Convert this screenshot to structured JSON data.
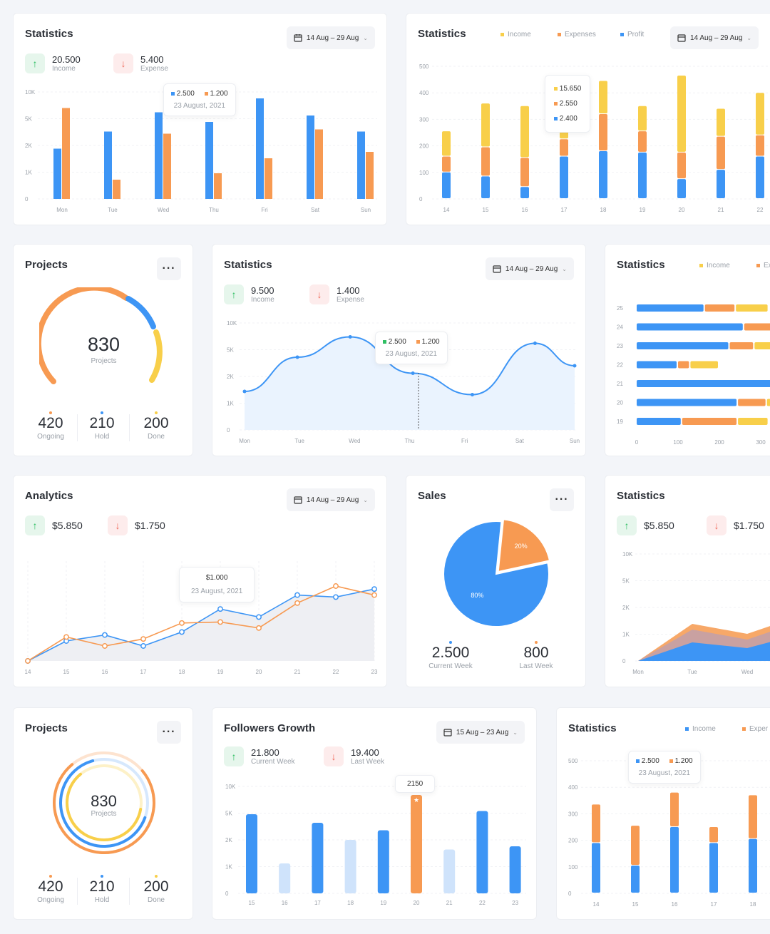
{
  "colors": {
    "blue": "#3d95f5",
    "orange": "#f79a52",
    "yellow": "#f8cf4a",
    "green": "#2fbf63",
    "red": "#f06a5b",
    "lightblue": "#cfe3fb"
  },
  "icons": {
    "calendar": "calendar-icon",
    "up": "arrow-up-icon",
    "down": "arrow-down-icon",
    "chevron": "chevron-down-icon",
    "more": "more-icon"
  },
  "c1": {
    "title": "Statistics",
    "date": "14 Aug – 29 Aug",
    "kpi1": {
      "value": "20.500",
      "label": "Income"
    },
    "kpi2": {
      "value": "5.400",
      "label": "Expense"
    },
    "tip": {
      "a": "2.500",
      "b": "1.200",
      "date": "23 August, 2021"
    },
    "chart_data": {
      "type": "bar",
      "categories": [
        "Mon",
        "Tue",
        "Wed",
        "Thu",
        "Fri",
        "Sat",
        "Sun"
      ],
      "yticks": [
        "10K",
        "5K",
        "2K",
        "1K",
        "0"
      ],
      "series": [
        {
          "color": "blue",
          "values": [
            0.47,
            0.63,
            0.81,
            0.72,
            0.94,
            0.78,
            0.63
          ]
        },
        {
          "color": "orange",
          "values": [
            0.85,
            0.18,
            0.61,
            0.24,
            0.38,
            0.65,
            0.44
          ]
        }
      ]
    }
  },
  "c2": {
    "title": "Statistics",
    "date": "14 Aug – 29 Aug",
    "legend": [
      "Income",
      "Expenses",
      "Profit"
    ],
    "tip": {
      "a": "15.650",
      "b": "2.550",
      "c": "2.400"
    },
    "chart_data": {
      "type": "bar",
      "categories": [
        "14",
        "15",
        "16",
        "17",
        "18",
        "19",
        "20",
        "21",
        "22"
      ],
      "yticks": [
        "500",
        "400",
        "300",
        "200",
        "100",
        "0"
      ],
      "ylim": [
        0,
        500
      ],
      "series": [
        {
          "name": "Income",
          "color": "blue",
          "values": [
            100,
            85,
            45,
            160,
            180,
            175,
            75,
            110,
            160
          ]
        },
        {
          "name": "Expenses",
          "color": "orange",
          "values": [
            60,
            110,
            110,
            65,
            140,
            80,
            100,
            125,
            80
          ]
        },
        {
          "name": "Profit",
          "color": "yellow",
          "values": [
            95,
            165,
            195,
            190,
            125,
            95,
            290,
            105,
            160
          ]
        }
      ]
    }
  },
  "c3": {
    "title": "Projects",
    "value": "830",
    "label": "Projects",
    "stats": [
      {
        "v": "420",
        "l": "Ongoing"
      },
      {
        "v": "210",
        "l": "Hold"
      },
      {
        "v": "200",
        "l": "Done"
      }
    ]
  },
  "c4": {
    "title": "Statistics",
    "date": "14 Aug – 29 Aug",
    "kpi1": {
      "value": "9.500",
      "label": "Income"
    },
    "kpi2": {
      "value": "1.400",
      "label": "Expense"
    },
    "tip": {
      "a": "2.500",
      "b": "1.200",
      "date": "23 August, 2021"
    },
    "chart_data": {
      "type": "area",
      "categories": [
        "Mon",
        "Tue",
        "Wed",
        "Thu",
        "Fri",
        "Sat",
        "Sun"
      ],
      "yticks": [
        "10K",
        "5K",
        "2K",
        "1K",
        "0"
      ],
      "points": [
        [
          0,
          0.36
        ],
        [
          0.16,
          0.68
        ],
        [
          0.32,
          0.87
        ],
        [
          0.51,
          0.53
        ],
        [
          0.69,
          0.33
        ],
        [
          0.88,
          0.81
        ],
        [
          1,
          0.6
        ]
      ]
    }
  },
  "c5": {
    "title": "Statistics",
    "legend": [
      "Income",
      "Expenses"
    ],
    "chart_data": {
      "type": "bar",
      "orientation": "horizontal",
      "categories": [
        "25",
        "24",
        "23",
        "22",
        "21",
        "20",
        "19"
      ],
      "xticks": [
        "0",
        "100",
        "200",
        "300"
      ],
      "series": [
        {
          "color": "blue",
          "values": [
            165,
            260,
            225,
            100,
            330,
            245,
            110
          ]
        },
        {
          "color": "orange",
          "values": [
            75,
            75,
            60,
            30,
            0,
            70,
            135
          ]
        },
        {
          "color": "yellow",
          "values": [
            80,
            60,
            70,
            70,
            0,
            60,
            75
          ]
        }
      ]
    }
  },
  "c6": {
    "title": "Analytics",
    "date": "14 Aug – 29 Aug",
    "kpi1": {
      "value": "$5.850"
    },
    "kpi2": {
      "value": "$1.750"
    },
    "tip": {
      "a": "$1.000",
      "date": "23 August, 2021"
    },
    "chart_data": {
      "type": "line",
      "categories": [
        "14",
        "15",
        "16",
        "17",
        "18",
        "19",
        "20",
        "21",
        "22",
        "23"
      ],
      "series": [
        {
          "color": "blue",
          "values": [
            0,
            0.2,
            0.26,
            0.15,
            0.29,
            0.52,
            0.44,
            0.66,
            0.64,
            0.72
          ]
        },
        {
          "color": "orange",
          "values": [
            0,
            0.24,
            0.15,
            0.22,
            0.38,
            0.39,
            0.33,
            0.58,
            0.75,
            0.66
          ]
        }
      ]
    }
  },
  "c7": {
    "title": "Sales",
    "chart_data": {
      "type": "pie",
      "slices": [
        {
          "label": "80%",
          "value": 80,
          "color": "blue"
        },
        {
          "label": "20%",
          "value": 20,
          "color": "orange"
        }
      ]
    },
    "stats": [
      {
        "v": "2.500",
        "l": "Current Week"
      },
      {
        "v": "800",
        "l": "Last Week"
      }
    ]
  },
  "c8": {
    "title": "Statistics",
    "kpi1": {
      "value": "$5.850"
    },
    "kpi2": {
      "value": "$1.750"
    },
    "chart_data": {
      "type": "area",
      "categories": [
        "Mon",
        "Tue",
        "Wed"
      ],
      "yticks": [
        "10K",
        "5K",
        "2K",
        "1K",
        "0"
      ]
    }
  },
  "c9": {
    "title": "Projects",
    "value": "830",
    "label": "Projects",
    "stats": [
      {
        "v": "420",
        "l": "Ongoing"
      },
      {
        "v": "210",
        "l": "Hold"
      },
      {
        "v": "200",
        "l": "Done"
      }
    ]
  },
  "c10": {
    "title": "Followers Growth",
    "date": "15 Aug – 23 Aug",
    "kpi1": {
      "value": "21.800",
      "label": "Current Week"
    },
    "kpi2": {
      "value": "19.400",
      "label": "Last Week"
    },
    "tip": "2150",
    "chart_data": {
      "type": "bar",
      "categories": [
        "15",
        "16",
        "17",
        "18",
        "19",
        "20",
        "21",
        "22",
        "23"
      ],
      "yticks": [
        "10K",
        "5K",
        "2K",
        "1K",
        "0"
      ],
      "values": [
        0.74,
        0.28,
        0.66,
        0.5,
        0.59,
        0.92,
        0.41,
        0.77,
        0.44
      ],
      "colors": [
        "blue",
        "lightblue",
        "blue",
        "lightblue",
        "blue",
        "orange",
        "lightblue",
        "blue",
        "blue"
      ]
    }
  },
  "c11": {
    "title": "Statistics",
    "legend": [
      "Income",
      "Exper"
    ],
    "tip": {
      "a": "2.500",
      "b": "1.200",
      "date": "23 August, 2021"
    },
    "chart_data": {
      "type": "bar",
      "categories": [
        "14",
        "15",
        "16",
        "17",
        "18"
      ],
      "yticks": [
        "500",
        "400",
        "300",
        "200",
        "100",
        "0"
      ],
      "ylim": [
        0,
        500
      ],
      "series": [
        {
          "color": "blue",
          "values": [
            190,
            105,
            250,
            190,
            205
          ]
        },
        {
          "color": "orange",
          "values": [
            145,
            150,
            130,
            60,
            165
          ]
        }
      ]
    }
  }
}
